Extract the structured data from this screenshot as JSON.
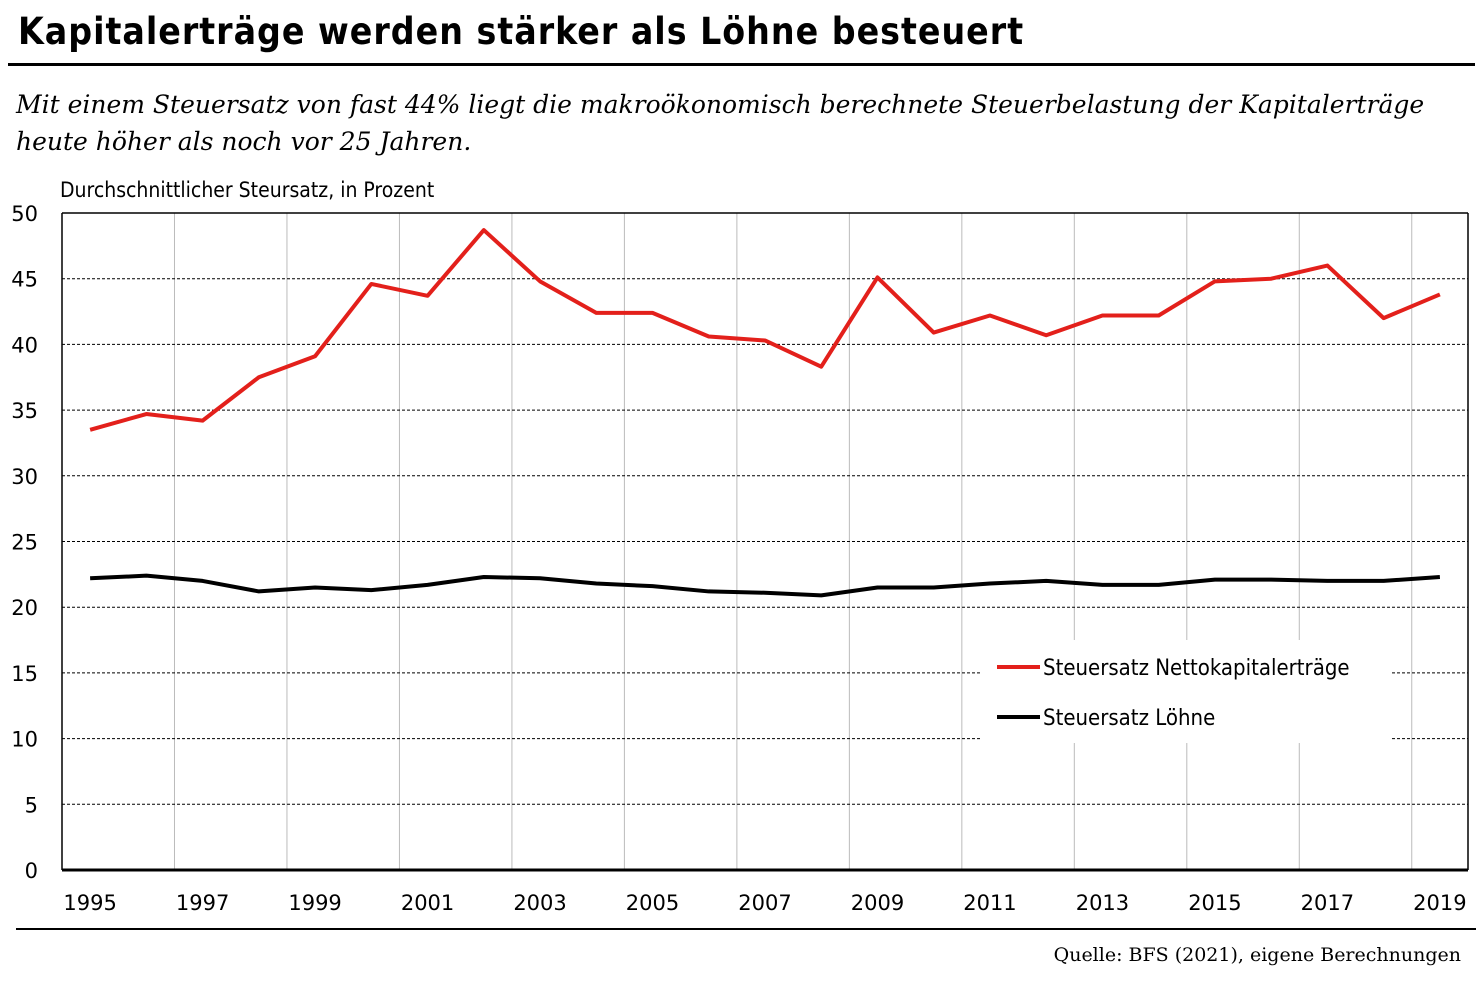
{
  "header": {
    "title": "Kapitalerträge werden stärker als Löhne besteuert",
    "subtitle": "Mit einem Steuersatz von fast 44% liegt die makroökonomisch berechnete Steuerbelastung der Kapitalerträge heute höher als noch vor 25 Jahren."
  },
  "footer": {
    "source": "Quelle: BFS (2021), eigene Berechnungen"
  },
  "chart_data": {
    "type": "line",
    "title": "Kapitalerträge werden stärker als Löhne besteuert",
    "ylabel": "Durchschnittlicher Steursatz, in Prozent",
    "xlabel": "",
    "ylim": [
      0,
      50
    ],
    "yticks": [
      0,
      5,
      10,
      15,
      20,
      25,
      30,
      35,
      40,
      45,
      50
    ],
    "xtick_labels": [
      "1995",
      "1997",
      "1999",
      "2001",
      "2003",
      "2005",
      "2007",
      "2009",
      "2011",
      "2013",
      "2015",
      "2017",
      "2019"
    ],
    "grid": {
      "horizontal": "dashed",
      "vertical": "solid-light"
    },
    "legend_position": "right-middle",
    "x": [
      1995,
      1996,
      1997,
      1998,
      1999,
      2000,
      2001,
      2002,
      2003,
      2004,
      2005,
      2006,
      2007,
      2008,
      2009,
      2010,
      2011,
      2012,
      2013,
      2014,
      2015,
      2016,
      2017,
      2018,
      2019
    ],
    "series": [
      {
        "name": "Steuersatz Nettokapitalerträge",
        "color": "#e3201b",
        "values": [
          33.5,
          34.7,
          34.2,
          37.5,
          39.1,
          44.6,
          43.7,
          48.7,
          44.8,
          42.4,
          42.4,
          40.6,
          40.3,
          38.3,
          45.1,
          40.9,
          42.2,
          40.7,
          42.2,
          42.2,
          44.8,
          45.0,
          46.0,
          42.0,
          43.8
        ]
      },
      {
        "name": "Steuersatz Löhne",
        "color": "#000000",
        "values": [
          22.2,
          22.4,
          22.0,
          21.2,
          21.5,
          21.3,
          21.7,
          22.3,
          22.2,
          21.8,
          21.6,
          21.2,
          21.1,
          20.9,
          21.5,
          21.5,
          21.8,
          22.0,
          21.7,
          21.7,
          22.1,
          22.1,
          22.0,
          22.0,
          22.3
        ]
      }
    ]
  }
}
